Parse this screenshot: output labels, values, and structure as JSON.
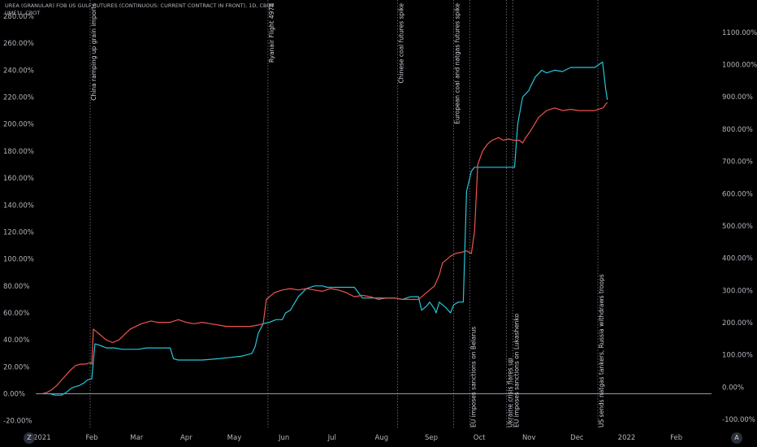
{
  "header": {
    "title": "UREA (GRANULAR) FOB US GULF FUTURES (CONTINUOUS: CURRENT CONTRACT IN FRONT), 1D, CBOT",
    "subtitle": "UME1!, CBOT"
  },
  "corner_buttons": {
    "left": "Z",
    "right": "A"
  },
  "colors": {
    "series_primary": "#26c6da",
    "series_compare": "#ef5350",
    "zero_line": "#9598a1",
    "event_line": "#787b86",
    "text": "#b2b5be"
  },
  "chart_data": {
    "type": "line",
    "x_ticks": [
      {
        "label": "2021",
        "pos": 0.0
      },
      {
        "label": "Feb",
        "pos": 31
      },
      {
        "label": "Mar",
        "pos": 59
      },
      {
        "label": "Apr",
        "pos": 90
      },
      {
        "label": "May",
        "pos": 120
      },
      {
        "label": "Jun",
        "pos": 151
      },
      {
        "label": "Jul",
        "pos": 181
      },
      {
        "label": "Aug",
        "pos": 212
      },
      {
        "label": "Sep",
        "pos": 243
      },
      {
        "label": "Oct",
        "pos": 273
      },
      {
        "label": "Nov",
        "pos": 304
      },
      {
        "label": "Dec",
        "pos": 334
      },
      {
        "label": "2022",
        "pos": 365
      },
      {
        "label": "Feb",
        "pos": 396
      }
    ],
    "xlim": [
      -4,
      418
    ],
    "left_axis": {
      "ylim": [
        -25,
        280
      ],
      "ticks": [
        -20,
        0,
        20,
        40,
        60,
        80,
        100,
        120,
        140,
        160,
        180,
        200,
        220,
        240,
        260,
        280
      ],
      "tick_labels": [
        "-20.00%",
        "0.00%",
        "20.00%",
        "40.00%",
        "60.00%",
        "80.00%",
        "100.00%",
        "120.00%",
        "140.00%",
        "160.00%",
        "180.00%",
        "200.00%",
        "220.00%",
        "240.00%",
        "260.00%",
        "280.00%"
      ]
    },
    "right_axis": {
      "ylim": [
        -125,
        1150
      ],
      "ticks": [
        -100,
        0,
        100,
        200,
        300,
        400,
        500,
        600,
        700,
        800,
        900,
        1000,
        1100
      ],
      "tick_labels": [
        "-100.00%",
        "0.00%",
        "100.00%",
        "200.00%",
        "300.00%",
        "400.00%",
        "500.00%",
        "600.00%",
        "700.00%",
        "800.00%",
        "900.00%",
        "1000.00%",
        "1100.00%"
      ]
    },
    "series": [
      {
        "name": "UREA (GRANULAR) FOB US GULF FUTURES",
        "axis": "left",
        "x": [
          0,
          5,
          8,
          12,
          15,
          18,
          20,
          23,
          26,
          28,
          30,
          31,
          33,
          36,
          40,
          45,
          50,
          55,
          60,
          65,
          70,
          75,
          80,
          82,
          85,
          90,
          100,
          110,
          118,
          125,
          131,
          133,
          135,
          138,
          142,
          146,
          150,
          152,
          155,
          160,
          165,
          170,
          175,
          178,
          180,
          185,
          190,
          195,
          200,
          205,
          212,
          215,
          220,
          225,
          230,
          235,
          237,
          240,
          242,
          245,
          246,
          248,
          252,
          255,
          257,
          260,
          263,
          265,
          267,
          268,
          270,
          271,
          272,
          273,
          275,
          278,
          282,
          288,
          295,
          297,
          300,
          304,
          305,
          308,
          312,
          315,
          320,
          325,
          330,
          335,
          340,
          345,
          350,
          352,
          353
        ],
        "y": [
          0,
          0,
          -1,
          -1,
          1,
          4,
          5,
          6,
          8,
          10,
          11,
          11,
          37,
          36,
          34,
          34,
          33,
          33,
          33,
          34,
          34,
          34,
          34,
          26,
          25,
          25,
          25,
          26,
          27,
          28,
          30,
          35,
          45,
          52,
          53,
          55,
          55,
          60,
          62,
          72,
          78,
          80,
          80,
          79,
          79,
          79,
          79,
          79,
          71,
          71,
          71,
          71,
          71,
          70,
          72,
          72,
          62,
          65,
          68,
          63,
          60,
          68,
          64,
          60,
          66,
          68,
          68,
          150,
          160,
          165,
          168,
          168,
          168,
          168,
          168,
          168,
          168,
          168,
          168,
          200,
          220,
          225,
          228,
          235,
          240,
          238,
          240,
          239,
          242,
          242,
          242,
          242,
          246,
          225,
          218
        ]
      },
      {
        "name": "UME1!, CBOT",
        "axis": "left",
        "x": [
          0,
          3,
          6,
          9,
          12,
          15,
          18,
          21,
          24,
          27,
          30,
          31,
          32,
          34,
          36,
          40,
          44,
          48,
          55,
          62,
          68,
          72,
          76,
          80,
          85,
          90,
          95,
          100,
          105,
          110,
          115,
          120,
          125,
          130,
          135,
          138,
          140,
          145,
          150,
          155,
          160,
          165,
          170,
          175,
          180,
          185,
          190,
          195,
          200,
          205,
          210,
          215,
          220,
          225,
          230,
          235,
          240,
          245,
          248,
          250,
          252,
          255,
          258,
          262,
          265,
          268,
          270,
          272,
          275,
          278,
          281,
          285,
          288,
          291,
          295,
          298,
          300,
          302,
          305,
          310,
          315,
          320,
          325,
          330,
          335,
          340,
          345,
          350,
          351,
          352,
          353
        ],
        "y": [
          0,
          1,
          3,
          6,
          10,
          14,
          18,
          21,
          22,
          22,
          23,
          22,
          48,
          46,
          44,
          40,
          38,
          40,
          48,
          52,
          54,
          53,
          53,
          53,
          55,
          53,
          52,
          53,
          52,
          51,
          50,
          50,
          50,
          50,
          51,
          52,
          70,
          75,
          77,
          78,
          77,
          78,
          77,
          76,
          78,
          77,
          75,
          72,
          73,
          72,
          70,
          71,
          71,
          70,
          70,
          70,
          75,
          80,
          88,
          97,
          99,
          102,
          104,
          105,
          106,
          104,
          120,
          170,
          180,
          185,
          188,
          190,
          188,
          189,
          188,
          188,
          186,
          190,
          195,
          205,
          210,
          212,
          210,
          211,
          210,
          210,
          210,
          212,
          213,
          215,
          216
        ]
      }
    ],
    "series_note": "Cyan series plotted on left scale values shown; red series on left scale values shown.",
    "events": [
      {
        "label": "China ramping up grain imports",
        "x": 30,
        "label_pos": "top"
      },
      {
        "label": "Ryanair Flight 4978",
        "x": 141,
        "label_pos": "top"
      },
      {
        "label": "Chinese coal futures spike",
        "x": 222,
        "label_pos": "top"
      },
      {
        "label": "European coal and natgas futures spike",
        "x": 257,
        "label_pos": "top"
      },
      {
        "label": "EU imposes sanctions on Belarus",
        "x": 267,
        "label_pos": "bottom"
      },
      {
        "label": "Ukraine crisis flares up",
        "x": 290,
        "label_pos": "bottom"
      },
      {
        "label": "EU imposes sanctions on Lukashenko",
        "x": 294,
        "label_pos": "bottom"
      },
      {
        "label": "US sends natgas tankers, Russia withdraws troops",
        "x": 347,
        "label_pos": "bottom"
      }
    ],
    "grid": false,
    "legend": "none"
  }
}
